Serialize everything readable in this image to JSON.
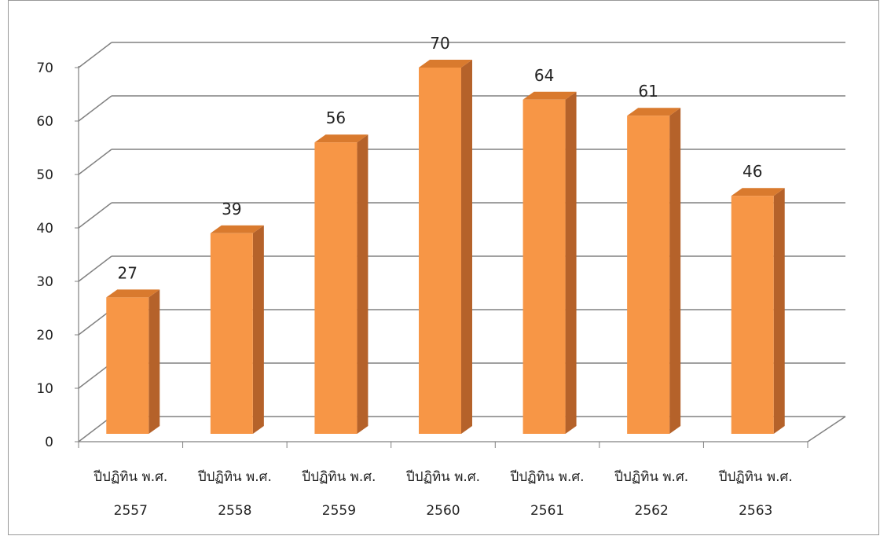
{
  "chart_data": {
    "type": "bar",
    "categories": [
      [
        "ปีปฏิทิน พ.ศ.",
        "2557"
      ],
      [
        "ปีปฏิทิน พ.ศ.",
        "2558"
      ],
      [
        "ปีปฏิทิน พ.ศ.",
        "2559"
      ],
      [
        "ปีปฏิทิน พ.ศ.",
        "2560"
      ],
      [
        "ปีปฏิทิน พ.ศ.",
        "2561"
      ],
      [
        "ปีปฏิทิน พ.ศ.",
        "2562"
      ],
      [
        "ปีปฏิทิน พ.ศ.",
        "2563"
      ]
    ],
    "values": [
      27,
      39,
      56,
      70,
      64,
      61,
      46
    ],
    "value_labels": [
      "27",
      "39",
      "56",
      "70",
      "64",
      "61",
      "46"
    ],
    "yticks": [
      "0",
      "10",
      "20",
      "30",
      "40",
      "50",
      "60",
      "70"
    ],
    "ylim": [
      0,
      70
    ],
    "grid": true,
    "legend": false,
    "style": "3d-column",
    "colors": {
      "bar_front": "#F79646",
      "bar_side": "#B5622A",
      "bar_top": "#D97A2E",
      "grid": "#808080",
      "frame_border": "#999999"
    }
  }
}
